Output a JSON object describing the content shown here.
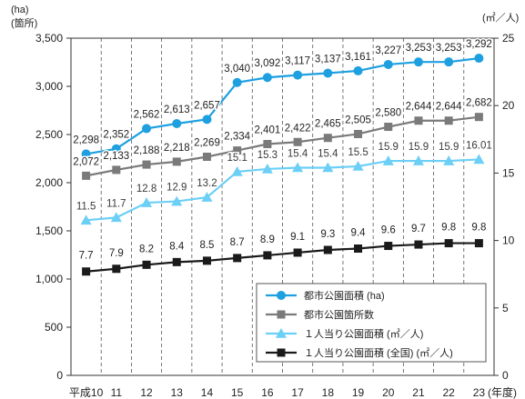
{
  "chart_data": {
    "type": "line",
    "left_unit_top": "(ha)",
    "left_unit_bottom": "(箇所)",
    "right_unit": "(㎡／人)",
    "x_suffix": "(年度)",
    "categories": [
      "平成10",
      "11",
      "12",
      "13",
      "14",
      "15",
      "16",
      "17",
      "18",
      "19",
      "20",
      "21",
      "22",
      "23"
    ],
    "left_axis": {
      "min": 0,
      "max": 3500,
      "ticks": [
        "0",
        "500",
        "1,000",
        "1,500",
        "2,000",
        "2,500",
        "3,000",
        "3,500"
      ]
    },
    "right_axis": {
      "min": 0,
      "max": 25,
      "ticks": [
        "0",
        "5",
        "10",
        "15",
        "20",
        "25"
      ]
    },
    "grid": "vertical dashed lines at each year",
    "legend_position": "bottom-right",
    "series": [
      {
        "name": "都市公園面積 (ha)",
        "axis": "left",
        "marker": "circle",
        "color": "#1ea0e0",
        "values": [
          2298,
          2352,
          2562,
          2613,
          2657,
          3040,
          3092,
          3117,
          3137,
          3161,
          3227,
          3253,
          3253,
          3292
        ],
        "labels": [
          "2,298",
          "2,352",
          "2,562",
          "2,613",
          "2,657",
          "3,040",
          "3,092",
          "3,117",
          "3,137",
          "3,161",
          "3,227",
          "3,253",
          "3,253",
          "3,292"
        ]
      },
      {
        "name": "都市公園箇所数",
        "axis": "left",
        "marker": "square",
        "color": "#7a7a7a",
        "values": [
          2072,
          2133,
          2188,
          2218,
          2269,
          2334,
          2401,
          2422,
          2465,
          2505,
          2580,
          2644,
          2644,
          2682
        ],
        "labels": [
          "2,072",
          "2,133",
          "2,188",
          "2,218",
          "2,269",
          "2,334",
          "2,401",
          "2,422",
          "2,465",
          "2,505",
          "2,580",
          "2,644",
          "2,644",
          "2,682"
        ]
      },
      {
        "name": "１人当り公園面積 (㎡／人)",
        "axis": "right",
        "marker": "triangle",
        "color": "#6ccff6",
        "values": [
          11.5,
          11.7,
          12.8,
          12.9,
          13.2,
          15.1,
          15.3,
          15.4,
          15.4,
          15.5,
          15.9,
          15.9,
          15.9,
          16.01
        ],
        "labels": [
          "11.5",
          "11.7",
          "12.8",
          "12.9",
          "13.2",
          "15.1",
          "15.3",
          "15.4",
          "15.4",
          "15.5",
          "15.9",
          "15.9",
          "15.9",
          "16.01"
        ]
      },
      {
        "name": "１人当り公園面積 (全国) (㎡／人)",
        "axis": "right",
        "marker": "square",
        "color": "#1a1a1a",
        "values": [
          7.7,
          7.9,
          8.2,
          8.4,
          8.5,
          8.7,
          8.9,
          9.1,
          9.3,
          9.4,
          9.6,
          9.7,
          9.8,
          9.8
        ],
        "labels": [
          "7.7",
          "7.9",
          "8.2",
          "8.4",
          "8.5",
          "8.7",
          "8.9",
          "9.1",
          "9.3",
          "9.4",
          "9.6",
          "9.7",
          "9.8",
          "9.8"
        ]
      }
    ]
  }
}
